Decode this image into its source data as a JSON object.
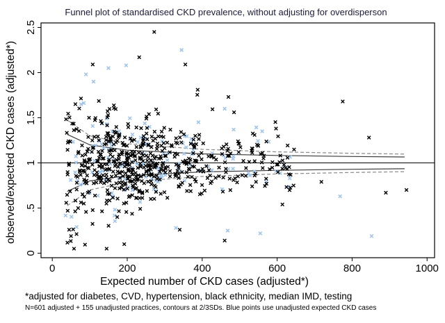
{
  "chart_data": {
    "type": "scatter",
    "title": "Funnel plot of standardised CKD prevalence,  without adjusting for overdisperson",
    "xlabel": "Expected number of CKD cases (adjusted*)",
    "ylabel": "observed/expected CKD cases (adjusted*)",
    "xlim": [
      -30,
      1020
    ],
    "ylim": [
      -0.05,
      2.55
    ],
    "x_ticks": [
      0,
      200,
      400,
      600,
      800,
      1000
    ],
    "x_tick_labels": [
      "0",
      "200",
      "400",
      "600",
      "800",
      "1000"
    ],
    "y_ticks": [
      0,
      0.5,
      1,
      1.5,
      2,
      2.5
    ],
    "y_tick_labels": [
      "0",
      ".5",
      "1",
      "1.5",
      "2",
      "2.5"
    ],
    "grid": false,
    "reference_line": 1,
    "footnote": "*adjusted for diabetes, CVD, hypertension, black ethnicity, median IMD, testing",
    "subnote": "N=601 adjusted + 155 unadjusted practices, contours at 2/3SDs. Blue points use unadjusted expected CKD cases",
    "series": [
      {
        "name": "adjusted",
        "marker": "x",
        "color": "#000000",
        "n_drawn": 601,
        "points": [
          [
            272,
            2.45
          ],
          [
            232,
            2.17
          ],
          [
            355,
            2.09
          ],
          [
            108,
            2.09
          ],
          [
            388,
            1.81
          ],
          [
            485,
            1.56
          ],
          [
            597,
            1.38
          ],
          [
            775,
            1.68
          ],
          [
            845,
            1.28
          ],
          [
            890,
            0.67
          ],
          [
            945,
            0.7
          ],
          [
            718,
            0.79
          ],
          [
            614,
            0.54
          ],
          [
            540,
            0.86
          ],
          [
            580,
            0.93
          ],
          [
            460,
            0.14
          ],
          [
            340,
            0.26
          ],
          [
            192,
            0.1
          ],
          [
            58,
            0.05
          ],
          [
            145,
            0.05
          ],
          [
            470,
            1.73
          ],
          [
            98,
            1.5
          ]
        ]
      },
      {
        "name": "unadjusted",
        "marker": "x",
        "color": "#9ec3ea",
        "n_drawn": 155,
        "points": [
          [
            345,
            2.25
          ],
          [
            197,
            2.08
          ],
          [
            150,
            2.05
          ],
          [
            90,
            1.98
          ],
          [
            110,
            1.9
          ],
          [
            768,
            0.63
          ],
          [
            852,
            0.19
          ],
          [
            555,
            0.22
          ],
          [
            468,
            0.25
          ],
          [
            330,
            0.28
          ],
          [
            65,
            0.29
          ],
          [
            460,
            1.6
          ],
          [
            560,
            1.35
          ],
          [
            390,
            1.45
          ]
        ]
      }
    ],
    "contours": [
      {
        "name": "2SD",
        "style": "solid",
        "color": "#3a3a3a",
        "at_expected": [
          40,
          100,
          200,
          400,
          600,
          800,
          940
        ],
        "upper": [
          1.316,
          1.2,
          1.141,
          1.1,
          1.082,
          1.071,
          1.065
        ],
        "lower": [
          0.684,
          0.8,
          0.859,
          0.9,
          0.918,
          0.929,
          0.935
        ]
      },
      {
        "name": "3SD",
        "style": "dashed",
        "color": "#8a8a8a",
        "at_expected": [
          40,
          100,
          200,
          400,
          600,
          800,
          940
        ],
        "upper": [
          1.474,
          1.3,
          1.212,
          1.15,
          1.122,
          1.106,
          1.098
        ],
        "lower": [
          0.526,
          0.7,
          0.788,
          0.85,
          0.878,
          0.894,
          0.902
        ]
      }
    ]
  }
}
